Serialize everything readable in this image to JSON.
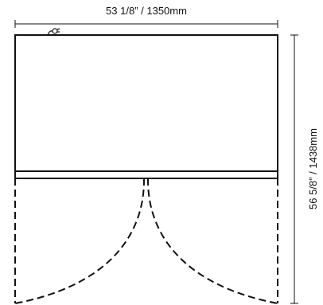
{
  "dimensions": {
    "width_label": "53 1/8” / 1350mm",
    "height_label": "56 5/8” / 1438mm"
  },
  "colors": {
    "line": "#111111",
    "background": "#ffffff"
  },
  "icons": {
    "power_cord": "plug-icon"
  }
}
